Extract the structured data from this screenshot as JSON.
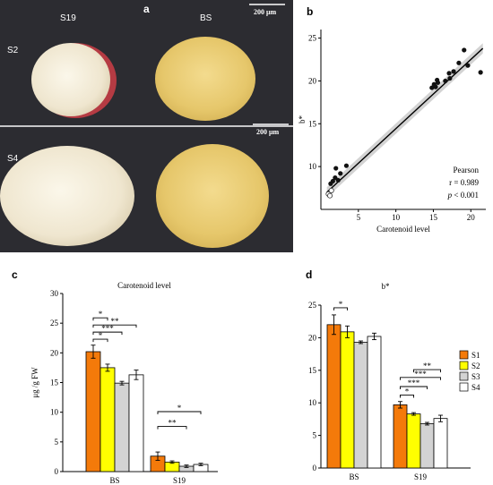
{
  "panel_a": {
    "letter": "a",
    "col_labels": [
      "S19",
      "BS"
    ],
    "row_labels": [
      "S2",
      "S4"
    ],
    "scale_bar": "200 μm"
  },
  "chart_data": [
    {
      "panel": "b",
      "type": "scatter",
      "xlabel": "Carotenoid level",
      "ylabel": "b*",
      "xlim": [
        0,
        22
      ],
      "ylim": [
        5,
        26
      ],
      "xticks": [
        5,
        10,
        15,
        20
      ],
      "yticks": [
        10,
        15,
        20,
        25
      ],
      "annotation": {
        "title": "Pearson",
        "r": "r = 0.989",
        "p_prefix": "p",
        "p_suffix": " < 0.001"
      },
      "points_filled": [
        {
          "x": 1.3,
          "y": 8.0
        },
        {
          "x": 1.6,
          "y": 8.3
        },
        {
          "x": 1.9,
          "y": 8.7
        },
        {
          "x": 2.3,
          "y": 8.4
        },
        {
          "x": 2.0,
          "y": 9.8
        },
        {
          "x": 2.6,
          "y": 9.2
        },
        {
          "x": 3.4,
          "y": 10.1
        },
        {
          "x": 14.8,
          "y": 19.2
        },
        {
          "x": 15.1,
          "y": 19.6
        },
        {
          "x": 15.3,
          "y": 19.3
        },
        {
          "x": 15.6,
          "y": 19.8
        },
        {
          "x": 15.5,
          "y": 20.1
        },
        {
          "x": 16.6,
          "y": 20.0
        },
        {
          "x": 17.2,
          "y": 20.3
        },
        {
          "x": 17.1,
          "y": 20.9
        },
        {
          "x": 17.7,
          "y": 21.1
        },
        {
          "x": 18.4,
          "y": 22.1
        },
        {
          "x": 19.1,
          "y": 23.6
        },
        {
          "x": 19.6,
          "y": 21.8
        },
        {
          "x": 21.3,
          "y": 21.0
        }
      ],
      "points_open": [
        {
          "x": 1.0,
          "y": 6.8
        },
        {
          "x": 1.2,
          "y": 6.6
        },
        {
          "x": 1.4,
          "y": 7.2
        }
      ],
      "fit": {
        "x": [
          0.8,
          21.6
        ],
        "y": [
          7.0,
          23.8
        ]
      }
    },
    {
      "panel": "c",
      "type": "bar",
      "title": "Carotenoid level",
      "ylabel": "μg /g FW",
      "ylim": [
        0,
        30
      ],
      "yticks": [
        0,
        5,
        10,
        15,
        20,
        25,
        30
      ],
      "categories": [
        "BS",
        "S19"
      ],
      "series": [
        {
          "name": "S1",
          "values": [
            20.2,
            2.6
          ],
          "errors": [
            1.1,
            0.7
          ]
        },
        {
          "name": "S2",
          "values": [
            17.5,
            1.6
          ],
          "errors": [
            0.6,
            0.2
          ]
        },
        {
          "name": "S3",
          "values": [
            14.9,
            0.9
          ],
          "errors": [
            0.3,
            0.2
          ]
        },
        {
          "name": "S4",
          "values": [
            16.3,
            1.2
          ],
          "errors": [
            0.8,
            0.2
          ]
        }
      ],
      "significance": [
        {
          "cat": 0,
          "from": 0,
          "to": 1,
          "label": "*",
          "level": 22.3
        },
        {
          "cat": 0,
          "from": 0,
          "to": 2,
          "label": "***",
          "level": 23.5
        },
        {
          "cat": 0,
          "from": 0,
          "to": 3,
          "label": "**",
          "level": 24.7
        },
        {
          "cat": 0,
          "from": 0,
          "to": 1,
          "label": "*",
          "level": 25.9
        },
        {
          "cat": 1,
          "from": 0,
          "to": 2,
          "label": "**",
          "level": 7.6
        },
        {
          "cat": 1,
          "from": 0,
          "to": 3,
          "label": "*",
          "level": 10.1
        }
      ]
    },
    {
      "panel": "d",
      "type": "bar",
      "title": "b*",
      "ylabel": "",
      "ylim": [
        0,
        25
      ],
      "yticks": [
        0,
        5,
        10,
        15,
        20,
        25
      ],
      "categories": [
        "BS",
        "S19"
      ],
      "series": [
        {
          "name": "S1",
          "values": [
            22.0,
            9.7
          ],
          "errors": [
            1.5,
            0.5
          ]
        },
        {
          "name": "S2",
          "values": [
            20.9,
            8.3
          ],
          "errors": [
            0.9,
            0.2
          ]
        },
        {
          "name": "S3",
          "values": [
            19.3,
            6.8
          ],
          "errors": [
            0.2,
            0.2
          ]
        },
        {
          "name": "S4",
          "values": [
            20.2,
            7.6
          ],
          "errors": [
            0.5,
            0.5
          ]
        }
      ],
      "significance": [
        {
          "cat": 0,
          "from": 0,
          "to": 1,
          "label": "*",
          "level": 24.6
        },
        {
          "cat": 1,
          "from": 0,
          "to": 1,
          "label": "*",
          "level": 11.2
        },
        {
          "cat": 1,
          "from": 0,
          "to": 2,
          "label": "***",
          "level": 12.5
        },
        {
          "cat": 1,
          "from": 0,
          "to": 3,
          "label": "***",
          "level": 13.9
        },
        {
          "cat": 1,
          "from": 1,
          "to": 3,
          "label": "**",
          "level": 15.1
        }
      ],
      "legend": [
        "S1",
        "S2",
        "S3",
        "S4"
      ],
      "legend_position": "right"
    }
  ],
  "panel_letters": {
    "b": "b",
    "c": "c",
    "d": "d"
  },
  "colors": {
    "S1": "#f47a0a",
    "S2": "#ffff00",
    "S3": "#d3d3d3",
    "S4": "#ffffff"
  }
}
